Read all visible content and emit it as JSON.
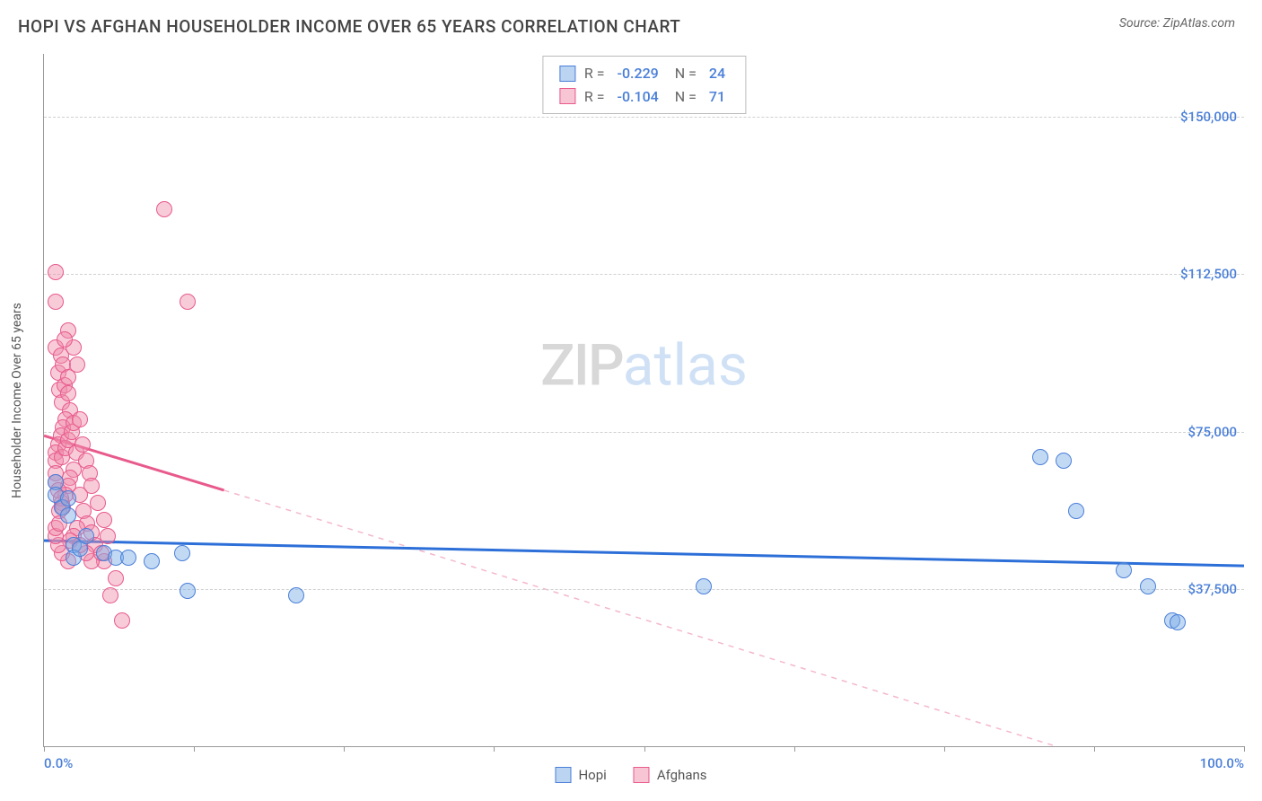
{
  "header": {
    "title": "HOPI VS AFGHAN HOUSEHOLDER INCOME OVER 65 YEARS CORRELATION CHART",
    "source": "Source: ZipAtlas.com"
  },
  "watermark": {
    "part1": "ZIP",
    "part2": "atlas"
  },
  "chart": {
    "type": "scatter",
    "ylabel": "Householder Income Over 65 years",
    "xlim": [
      0,
      100
    ],
    "ylim": [
      0,
      165000
    ],
    "yticks": [
      {
        "v": 37500,
        "label": "$37,500"
      },
      {
        "v": 75000,
        "label": "$75,000"
      },
      {
        "v": 112500,
        "label": "$112,500"
      },
      {
        "v": 150000,
        "label": "$150,000"
      }
    ],
    "xtick_positions": [
      0,
      12.5,
      25,
      37.5,
      50,
      62.5,
      75,
      87.5,
      100
    ],
    "xtick_labels": {
      "min": "0.0%",
      "max": "100.0%"
    },
    "grid_color": "#d0d0d0",
    "background_color": "#ffffff",
    "marker_size": 18,
    "series": {
      "hopi": {
        "label": "Hopi",
        "color_fill": "rgba(120,170,230,0.45)",
        "color_stroke": "#4a7fd8",
        "stats": {
          "R": "-0.229",
          "N": "24"
        },
        "trend": {
          "x1": 0,
          "y1": 49000,
          "x2": 100,
          "y2": 43000,
          "width": 3,
          "dash": "none"
        },
        "points": [
          [
            1,
            63000
          ],
          [
            1,
            60000
          ],
          [
            1.5,
            57000
          ],
          [
            2,
            59000
          ],
          [
            2,
            55000
          ],
          [
            2.5,
            48000
          ],
          [
            2.5,
            45000
          ],
          [
            3,
            47000
          ],
          [
            3.5,
            50000
          ],
          [
            5,
            46000
          ],
          [
            6,
            45000
          ],
          [
            7,
            45000
          ],
          [
            9,
            44000
          ],
          [
            12,
            37000
          ],
          [
            11.5,
            46000
          ],
          [
            21,
            36000
          ],
          [
            55,
            38000
          ],
          [
            83,
            69000
          ],
          [
            85,
            68000
          ],
          [
            86,
            56000
          ],
          [
            90,
            42000
          ],
          [
            92,
            38000
          ],
          [
            94,
            30000
          ],
          [
            94.5,
            29500
          ]
        ]
      },
      "afghans": {
        "label": "Afghans",
        "color_fill": "rgba(240,140,170,0.45)",
        "color_stroke": "#e85a8c",
        "stats": {
          "R": "-0.104",
          "N": "71"
        },
        "trend_solid": {
          "x1": 0,
          "y1": 74000,
          "x2": 15,
          "y2": 61000,
          "width": 3
        },
        "trend_dash": {
          "x1": 15,
          "y1": 61000,
          "x2": 90,
          "y2": -5000,
          "width": 1.5,
          "dash": "6 6"
        },
        "points": [
          [
            1,
            113000
          ],
          [
            1,
            106000
          ],
          [
            1,
            95000
          ],
          [
            1.2,
            89000
          ],
          [
            1.4,
            93000
          ],
          [
            1.6,
            91000
          ],
          [
            1.3,
            85000
          ],
          [
            1.5,
            82000
          ],
          [
            1.7,
            86000
          ],
          [
            2,
            88000
          ],
          [
            2,
            84000
          ],
          [
            2.2,
            80000
          ],
          [
            1.8,
            78000
          ],
          [
            1.6,
            76000
          ],
          [
            1.4,
            74000
          ],
          [
            1.2,
            72000
          ],
          [
            1,
            70000
          ],
          [
            1,
            68000
          ],
          [
            1.5,
            69000
          ],
          [
            1.8,
            71000
          ],
          [
            2,
            73000
          ],
          [
            2.3,
            75000
          ],
          [
            2.5,
            77000
          ],
          [
            2.7,
            70000
          ],
          [
            2.5,
            66000
          ],
          [
            2.2,
            64000
          ],
          [
            2,
            62000
          ],
          [
            1.8,
            60000
          ],
          [
            1.5,
            58000
          ],
          [
            1.3,
            56000
          ],
          [
            1,
            65000
          ],
          [
            1,
            63000
          ],
          [
            1.2,
            61000
          ],
          [
            1.4,
            59000
          ],
          [
            1.6,
            57000
          ],
          [
            3,
            78000
          ],
          [
            3.2,
            72000
          ],
          [
            3.5,
            68000
          ],
          [
            3.8,
            65000
          ],
          [
            4,
            62000
          ],
          [
            3,
            60000
          ],
          [
            3.3,
            56000
          ],
          [
            3.6,
            53000
          ],
          [
            2.8,
            52000
          ],
          [
            2.5,
            50000
          ],
          [
            2.2,
            49000
          ],
          [
            4.5,
            58000
          ],
          [
            5,
            54000
          ],
          [
            4,
            51000
          ],
          [
            4.3,
            48000
          ],
          [
            5,
            44000
          ],
          [
            5.5,
            36000
          ],
          [
            6,
            40000
          ],
          [
            6.5,
            30000
          ],
          [
            4,
            44000
          ],
          [
            3.5,
            46000
          ],
          [
            3,
            48000
          ],
          [
            4.8,
            46000
          ],
          [
            5.3,
            50000
          ],
          [
            2,
            44000
          ],
          [
            1.5,
            46000
          ],
          [
            1.2,
            48000
          ],
          [
            1,
            50000
          ],
          [
            1,
            52000
          ],
          [
            1.3,
            53000
          ],
          [
            10,
            128000
          ],
          [
            12,
            106000
          ],
          [
            2.5,
            95000
          ],
          [
            2.8,
            91000
          ],
          [
            2,
            99000
          ],
          [
            1.7,
            97000
          ]
        ]
      }
    }
  },
  "legend": {
    "items": [
      {
        "key": "hopi",
        "label": "Hopi",
        "swatch": "blue"
      },
      {
        "key": "afghans",
        "label": "Afghans",
        "swatch": "pink"
      }
    ]
  }
}
